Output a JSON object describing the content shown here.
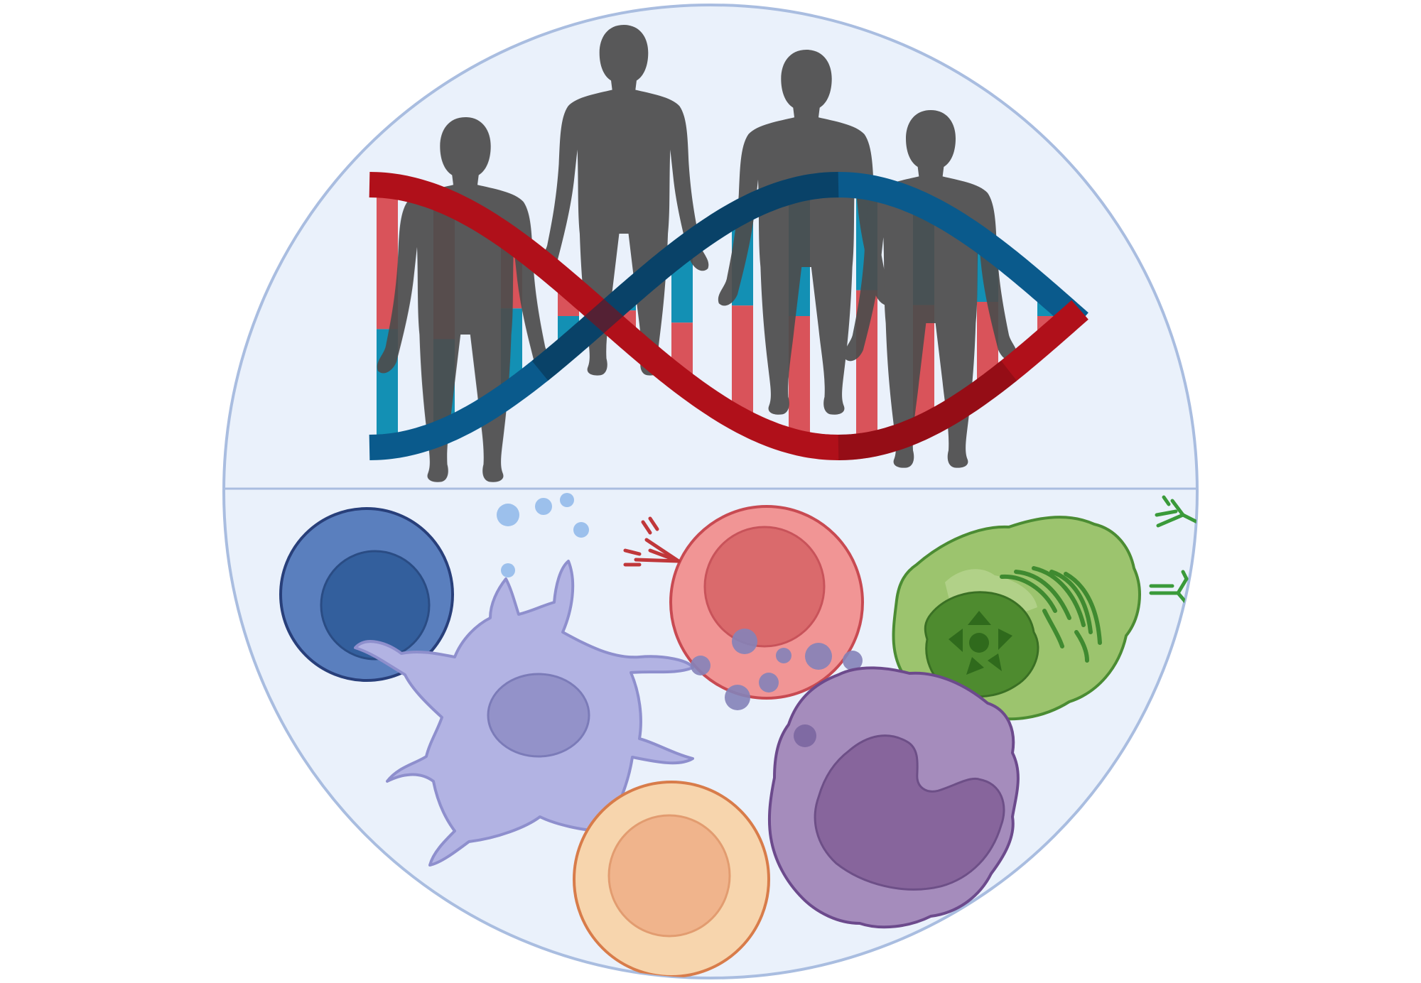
{
  "figure": {
    "topic": "genetics-and-immunity",
    "colors": {
      "background": "#ffffff",
      "circle_fill": "#eaf1fb",
      "circle_stroke": "#a9bde0",
      "strand_red": "#b0101a",
      "strand_red_dark": "#7a0a12",
      "strand_blue": "#0a5a8c",
      "strand_blue_dark": "#0a2f4a",
      "base_red": "#d9535a",
      "base_blue": "#1390b4",
      "silhouette": "#4d4d4d",
      "b_cell": "#5a7fbe",
      "dendritic_cell": "#b2b3e3",
      "t_cell": "#f19595",
      "plasma_cell": "#9cc46e",
      "macrophage": "#a58cbc",
      "nk_cell": "#f7d5ad",
      "antibody_red": "#c0373a",
      "antibody_green": "#3a9a3a",
      "cytokine": "#9cc0ec"
    },
    "icons": {
      "people": "human-silhouette-icon",
      "dna": "dna-double-helix-icon",
      "antibody": "antibody-icon",
      "cytokine": "cytokine-particle-icon"
    }
  }
}
